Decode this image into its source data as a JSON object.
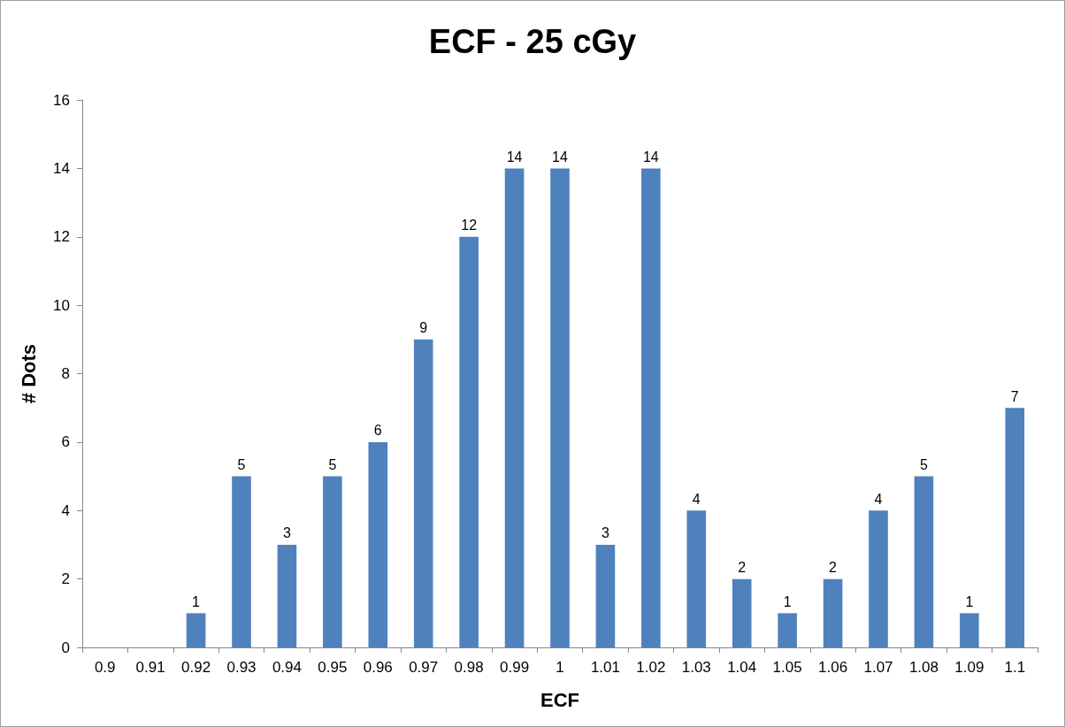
{
  "chart_data": {
    "type": "bar",
    "title": "ECF - 25 cGy",
    "xlabel": "ECF",
    "ylabel": "# Dots",
    "categories": [
      "0.9",
      "0.91",
      "0.92",
      "0.93",
      "0.94",
      "0.95",
      "0.96",
      "0.97",
      "0.98",
      "0.99",
      "1",
      "1.01",
      "1.02",
      "1.03",
      "1.04",
      "1.05",
      "1.06",
      "1.07",
      "1.08",
      "1.09",
      "1.1"
    ],
    "values": [
      0,
      0,
      1,
      5,
      3,
      5,
      6,
      9,
      12,
      14,
      14,
      3,
      14,
      4,
      2,
      1,
      2,
      4,
      5,
      1,
      7
    ],
    "value_labels": [
      null,
      null,
      "1",
      "5",
      "3",
      "5",
      "6",
      "9",
      "12",
      "14",
      "14",
      "3",
      "14",
      "4",
      "2",
      "1",
      "2",
      "4",
      "5",
      "1",
      "7"
    ],
    "color": "#4f81bd",
    "ylim": [
      0,
      16
    ],
    "yticks": [
      0,
      2,
      4,
      6,
      8,
      10,
      12,
      14,
      16
    ],
    "grid": false
  }
}
